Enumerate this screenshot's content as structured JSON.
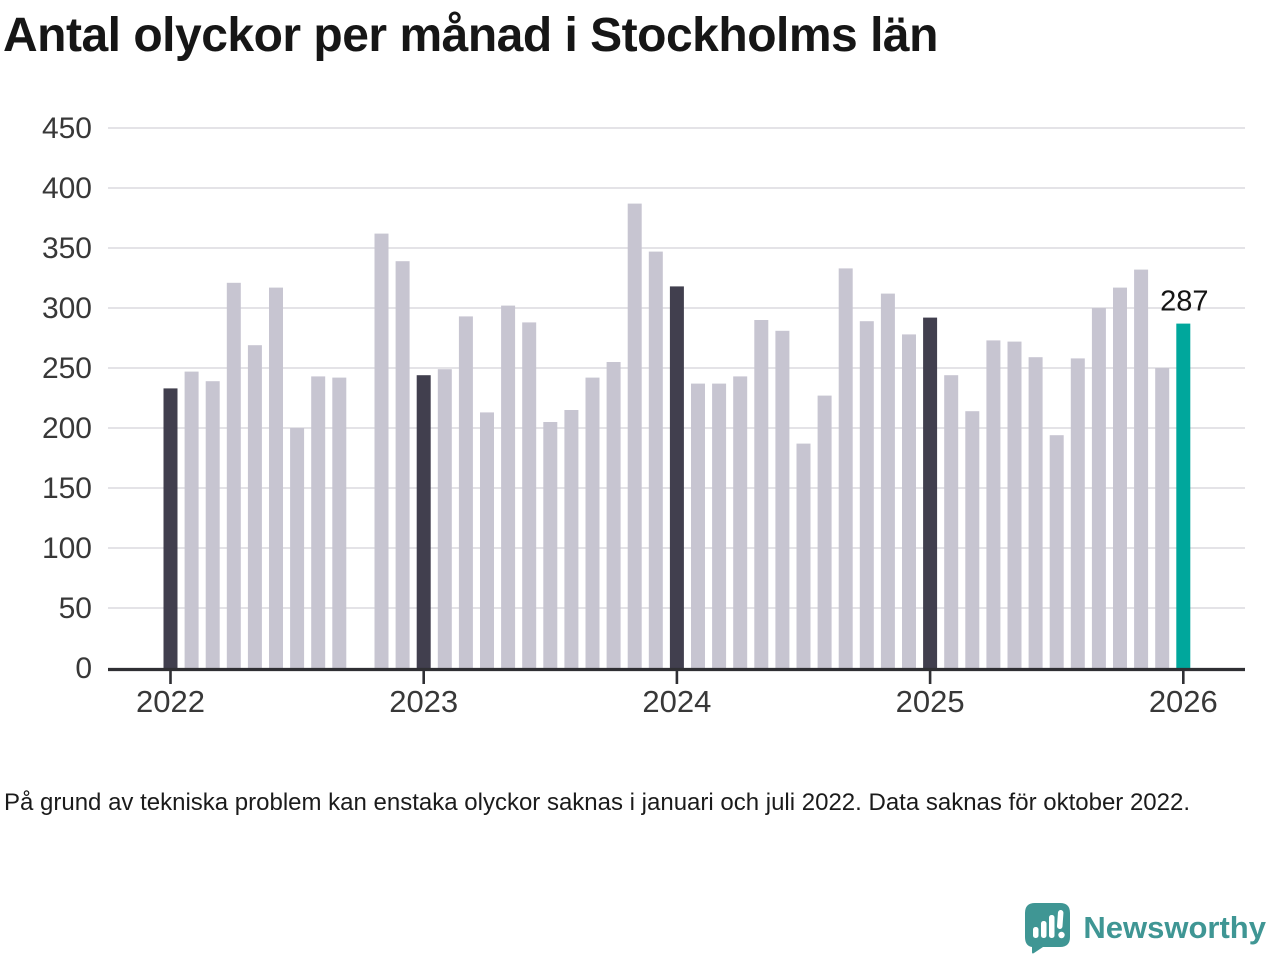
{
  "title": "Antal olyckor per månad i Stockholms län",
  "footnote": "På grund av tekniska problem kan enstaka olyckor saknas i januari och juli 2022. Data saknas för oktober 2022.",
  "branding": {
    "name": "Newsworthy"
  },
  "colors": {
    "bar_default": "#c7c5d1",
    "bar_january": "#413f4e",
    "bar_highlight": "#00a79c",
    "gridline": "#e4e3e7",
    "axis": "#2f2f33",
    "tick_text": "#383838",
    "annotation_text": "#141414",
    "title_text": "#161616",
    "logo_teal": "#3f9694"
  },
  "chart_data": {
    "type": "bar",
    "title": "Antal olyckor per månad i Stockholms län",
    "xlabel": "",
    "ylabel": "",
    "ylim": [
      0,
      450
    ],
    "y_ticks": [
      0,
      50,
      100,
      150,
      200,
      250,
      300,
      350,
      400,
      450
    ],
    "x_tick_labels": [
      "2022",
      "2023",
      "2024",
      "2025",
      "2026"
    ],
    "grid": true,
    "legend": false,
    "missing_months": [
      "2022-10"
    ],
    "annotation": {
      "month": "2026-01",
      "label": "287"
    },
    "bars": [
      {
        "month": "2022-01",
        "value": 233,
        "style": "january"
      },
      {
        "month": "2022-02",
        "value": 247,
        "style": "default"
      },
      {
        "month": "2022-03",
        "value": 239,
        "style": "default"
      },
      {
        "month": "2022-04",
        "value": 321,
        "style": "default"
      },
      {
        "month": "2022-05",
        "value": 269,
        "style": "default"
      },
      {
        "month": "2022-06",
        "value": 317,
        "style": "default"
      },
      {
        "month": "2022-07",
        "value": 200,
        "style": "default"
      },
      {
        "month": "2022-08",
        "value": 243,
        "style": "default"
      },
      {
        "month": "2022-09",
        "value": 242,
        "style": "default"
      },
      {
        "month": "2022-11",
        "value": 362,
        "style": "default"
      },
      {
        "month": "2022-12",
        "value": 339,
        "style": "default"
      },
      {
        "month": "2023-01",
        "value": 244,
        "style": "january"
      },
      {
        "month": "2023-02",
        "value": 249,
        "style": "default"
      },
      {
        "month": "2023-03",
        "value": 293,
        "style": "default"
      },
      {
        "month": "2023-04",
        "value": 213,
        "style": "default"
      },
      {
        "month": "2023-05",
        "value": 302,
        "style": "default"
      },
      {
        "month": "2023-06",
        "value": 288,
        "style": "default"
      },
      {
        "month": "2023-07",
        "value": 205,
        "style": "default"
      },
      {
        "month": "2023-08",
        "value": 215,
        "style": "default"
      },
      {
        "month": "2023-09",
        "value": 242,
        "style": "default"
      },
      {
        "month": "2023-10",
        "value": 255,
        "style": "default"
      },
      {
        "month": "2023-11",
        "value": 387,
        "style": "default"
      },
      {
        "month": "2023-12",
        "value": 347,
        "style": "default"
      },
      {
        "month": "2024-01",
        "value": 318,
        "style": "january"
      },
      {
        "month": "2024-02",
        "value": 237,
        "style": "default"
      },
      {
        "month": "2024-03",
        "value": 237,
        "style": "default"
      },
      {
        "month": "2024-04",
        "value": 243,
        "style": "default"
      },
      {
        "month": "2024-05",
        "value": 290,
        "style": "default"
      },
      {
        "month": "2024-06",
        "value": 281,
        "style": "default"
      },
      {
        "month": "2024-07",
        "value": 187,
        "style": "default"
      },
      {
        "month": "2024-08",
        "value": 227,
        "style": "default"
      },
      {
        "month": "2024-09",
        "value": 333,
        "style": "default"
      },
      {
        "month": "2024-10",
        "value": 289,
        "style": "default"
      },
      {
        "month": "2024-11",
        "value": 312,
        "style": "default"
      },
      {
        "month": "2024-12",
        "value": 278,
        "style": "default"
      },
      {
        "month": "2025-01",
        "value": 292,
        "style": "january"
      },
      {
        "month": "2025-02",
        "value": 244,
        "style": "default"
      },
      {
        "month": "2025-03",
        "value": 214,
        "style": "default"
      },
      {
        "month": "2025-04",
        "value": 273,
        "style": "default"
      },
      {
        "month": "2025-05",
        "value": 272,
        "style": "default"
      },
      {
        "month": "2025-06",
        "value": 259,
        "style": "default"
      },
      {
        "month": "2025-07",
        "value": 194,
        "style": "default"
      },
      {
        "month": "2025-08",
        "value": 258,
        "style": "default"
      },
      {
        "month": "2025-09",
        "value": 300,
        "style": "default"
      },
      {
        "month": "2025-10",
        "value": 317,
        "style": "default"
      },
      {
        "month": "2025-11",
        "value": 332,
        "style": "default"
      },
      {
        "month": "2025-12",
        "value": 250,
        "style": "default"
      },
      {
        "month": "2026-01",
        "value": 287,
        "style": "highlight"
      }
    ]
  }
}
